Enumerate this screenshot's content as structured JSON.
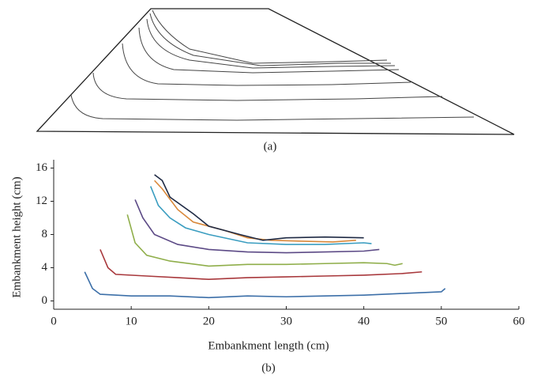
{
  "figure": {
    "panel_a": {
      "caption": "(a)"
    }
  },
  "chart_data": {
    "type": "line",
    "caption": "(b)",
    "xlabel": "Embankment length (cm)",
    "ylabel": "Embankment height (cm)",
    "xlim": [
      0,
      60
    ],
    "ylim": [
      -1,
      17
    ],
    "xticks": [
      0,
      10,
      20,
      30,
      40,
      50,
      60
    ],
    "yticks": [
      0,
      4,
      8,
      12,
      16
    ],
    "series": [
      {
        "color": "#3c6fa8",
        "x": [
          4,
          5,
          6,
          10,
          15,
          20,
          25,
          30,
          35,
          40,
          45,
          50,
          50.5
        ],
        "values": [
          3.5,
          1.5,
          0.8,
          0.6,
          0.6,
          0.4,
          0.6,
          0.5,
          0.6,
          0.7,
          0.9,
          1.1,
          1.5
        ]
      },
      {
        "color": "#a8383c",
        "x": [
          6,
          7,
          8,
          12,
          16,
          20,
          25,
          30,
          35,
          40,
          45,
          47.5
        ],
        "values": [
          6.2,
          4,
          3.2,
          3,
          2.8,
          2.6,
          2.8,
          2.9,
          3,
          3.1,
          3.3,
          3.5
        ]
      },
      {
        "color": "#8fae4a",
        "x": [
          9.5,
          10.5,
          12,
          15,
          20,
          25,
          30,
          35,
          40,
          43,
          44,
          45
        ],
        "values": [
          10.4,
          7,
          5.5,
          4.8,
          4.2,
          4.4,
          4.4,
          4.5,
          4.6,
          4.5,
          4.3,
          4.5
        ]
      },
      {
        "color": "#5c4a86",
        "x": [
          10.5,
          11.5,
          13,
          16,
          20,
          25,
          30,
          35,
          40,
          42
        ],
        "values": [
          12.2,
          10,
          8,
          6.8,
          6.2,
          5.9,
          5.8,
          5.9,
          6,
          6.2
        ]
      },
      {
        "color": "#3a9dc0",
        "x": [
          12.5,
          13.5,
          15,
          17,
          20,
          25,
          30,
          35,
          40,
          41
        ],
        "values": [
          13.8,
          11.5,
          10,
          8.8,
          8,
          7,
          6.8,
          6.8,
          7,
          6.9
        ]
      },
      {
        "color": "#d9883a",
        "x": [
          13,
          14,
          16,
          18,
          22,
          25,
          28,
          32,
          36,
          39
        ],
        "values": [
          14.5,
          13.5,
          11,
          9.5,
          8.5,
          7.6,
          7.3,
          7.2,
          7.1,
          7.3
        ]
      },
      {
        "color": "#1f2a44",
        "x": [
          13,
          14,
          15,
          18,
          20,
          24,
          27,
          30,
          35,
          40
        ],
        "values": [
          15.2,
          14.5,
          12.5,
          10.5,
          9,
          8,
          7.3,
          7.6,
          7.7,
          7.6
        ]
      }
    ]
  }
}
